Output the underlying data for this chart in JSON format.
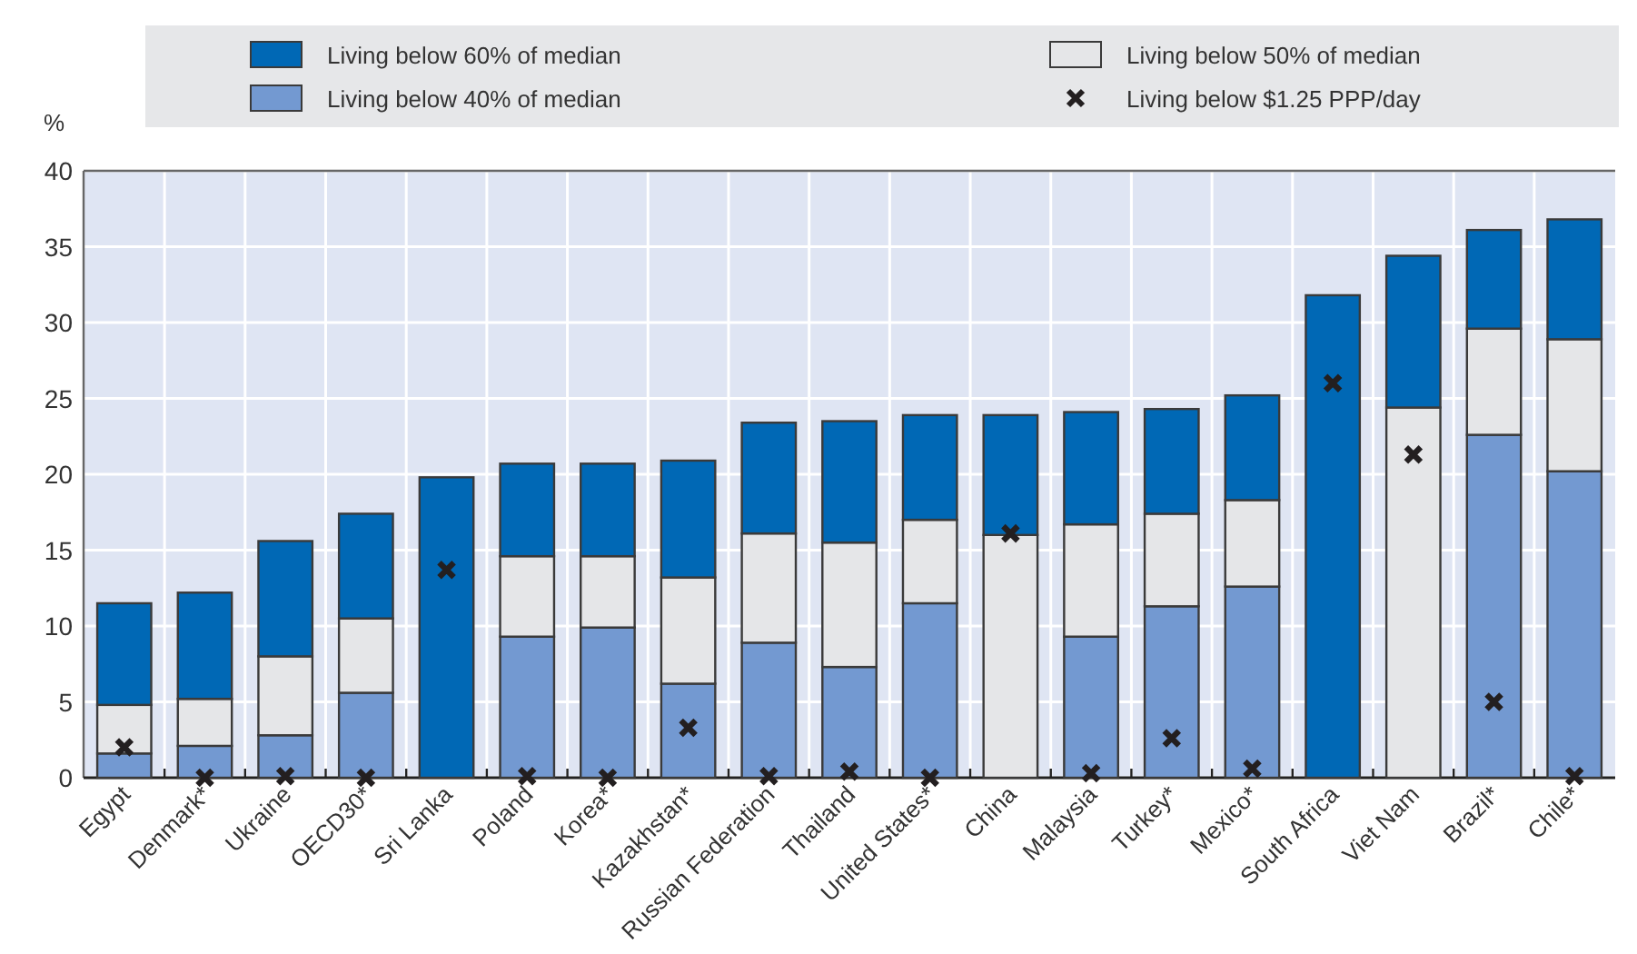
{
  "chart_data": {
    "type": "bar",
    "stacked": true,
    "ylabel": "%",
    "legend": "top",
    "grid": true,
    "categories": [
      "Egypt",
      "Denmark*",
      "Ukraine",
      "OECD30*",
      "Sri Lanka",
      "Poland",
      "Korea*",
      "Kazakhstan*",
      "Russian Federation",
      "Thailand",
      "United States*",
      "China",
      "Malaysia",
      "Turkey*",
      "Mexico*",
      "South Africa",
      "Viet Nam",
      "Brazil*",
      "Chile*"
    ],
    "ylim": [
      0,
      40
    ],
    "yticks": [
      0,
      5,
      10,
      15,
      20,
      25,
      30,
      35,
      40
    ],
    "series": [
      {
        "name": "Living below 40% of median",
        "color": "#7399d1",
        "values": [
          1.6,
          2.1,
          2.8,
          5.6,
          null,
          9.3,
          9.9,
          6.2,
          8.9,
          7.3,
          11.5,
          null,
          9.3,
          11.3,
          12.6,
          null,
          null,
          22.6,
          20.2
        ]
      },
      {
        "name": "Living below 50% of median",
        "color": "#e5e6e8",
        "values": [
          3.2,
          3.1,
          5.2,
          4.9,
          null,
          5.3,
          4.7,
          7.0,
          7.2,
          8.2,
          5.5,
          16.0,
          7.4,
          6.1,
          5.7,
          null,
          24.4,
          7.0,
          8.7
        ]
      },
      {
        "name": "Living below 60% of median",
        "color": "#0068b5",
        "values": [
          6.7,
          7.0,
          7.6,
          6.9,
          19.8,
          6.1,
          6.1,
          7.7,
          7.3,
          8.0,
          6.9,
          7.9,
          7.4,
          6.9,
          6.9,
          31.8,
          10.0,
          6.5,
          7.9
        ]
      },
      {
        "name": "Living below $1.25 PPP/day",
        "type": "scatter",
        "marker": "cross",
        "color": "#231f20",
        "x": [
          "Egypt",
          "Denmark*",
          "Ukraine",
          "OECD30*",
          "Sri Lanka",
          "Poland",
          "Korea*",
          "Kazakhstan*",
          "Russian Federation",
          "Thailand",
          "United States*",
          "China",
          "Malaysia",
          "Turkey*",
          "Mexico*",
          "South Africa",
          "Viet Nam",
          "Brazil*",
          "Chile*"
        ],
        "values": [
          2.0,
          0,
          0.1,
          0,
          13.7,
          0.1,
          0,
          3.3,
          0.1,
          0.4,
          0,
          16.1,
          0.3,
          2.6,
          0.6,
          26.0,
          21.3,
          5.0,
          0.1
        ]
      }
    ]
  }
}
